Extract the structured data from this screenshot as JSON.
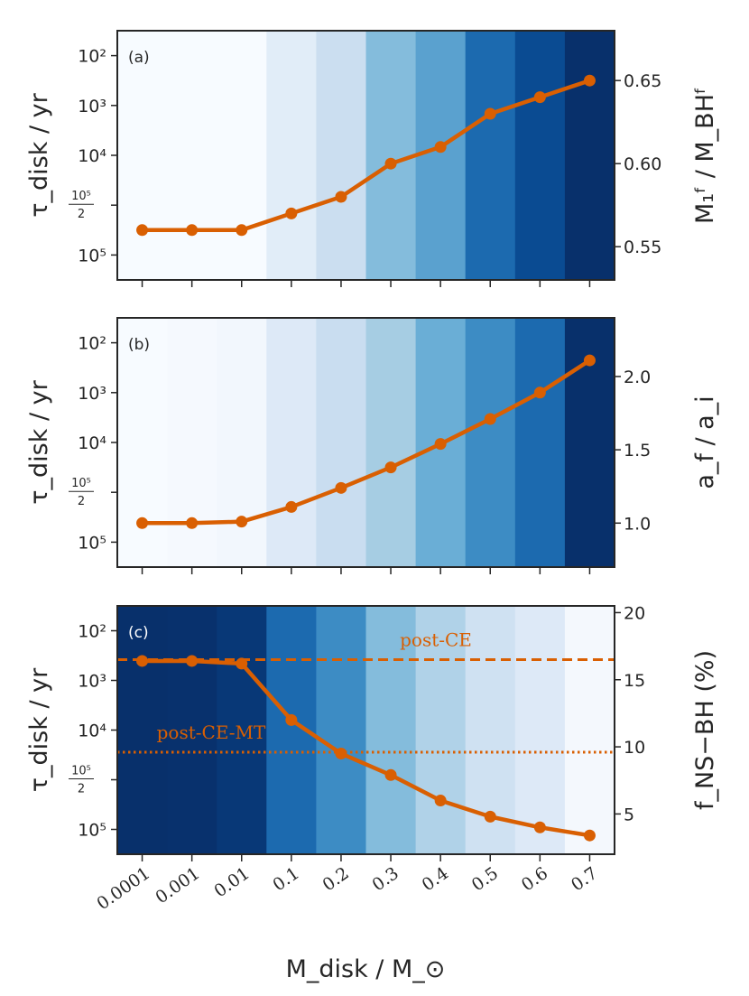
{
  "chart_data": {
    "type": "line",
    "shared_x": {
      "categories": [
        "0.0001",
        "0.001",
        "0.01",
        "0.1",
        "0.2",
        "0.3",
        "0.4",
        "0.5",
        "0.6",
        "0.7"
      ],
      "label": "M_disk / M_⊙"
    },
    "left_axis": {
      "label": "τ_disk / yr",
      "tick_labels": [
        "10²",
        "10³",
        "10⁴",
        "10⁵/2",
        "10⁵"
      ]
    },
    "panels": [
      {
        "tag": "(a)",
        "right_label": "M₁ᶠ / M_BHᶠ",
        "right_ylim": [
          0.53,
          0.68
        ],
        "right_ticks": [
          0.55,
          0.6,
          0.65
        ],
        "right_tick_labels": [
          "0.55",
          "0.60",
          "0.65"
        ],
        "band_colors": [
          "#f7fbff",
          "#f7fbff",
          "#f7fbff",
          "#e1edf8",
          "#cbdef0",
          "#84bcdc",
          "#5aa1cf",
          "#1c6aaf",
          "#0a4b92",
          "#08306b"
        ],
        "series": [
          {
            "name": "M1f/MBHf",
            "values": [
              0.56,
              0.56,
              0.56,
              0.57,
              0.58,
              0.6,
              0.61,
              0.63,
              0.64,
              0.65
            ]
          }
        ],
        "reference_lines": []
      },
      {
        "tag": "(b)",
        "right_label": "a_f / a_i",
        "right_ylim": [
          0.7,
          2.4
        ],
        "right_ticks": [
          1.0,
          1.5,
          2.0
        ],
        "right_tick_labels": [
          "1.0",
          "1.5",
          "2.0"
        ],
        "band_colors": [
          "#f7fbff",
          "#f5f9fe",
          "#f2f7fd",
          "#dde9f7",
          "#c9ddf0",
          "#a6cde3",
          "#6aaed6",
          "#3d8cc4",
          "#1c6aaf",
          "#08306b"
        ],
        "series": [
          {
            "name": "af/ai",
            "values": [
              1.0,
              1.0,
              1.01,
              1.11,
              1.24,
              1.38,
              1.54,
              1.71,
              1.89,
              2.11
            ]
          }
        ],
        "reference_lines": []
      },
      {
        "tag": "(c)",
        "right_label": "f_NS−BH (%)",
        "right_ylim": [
          2,
          20.5
        ],
        "right_ticks": [
          5,
          10,
          15,
          20
        ],
        "right_tick_labels": [
          "5",
          "10",
          "15",
          "20"
        ],
        "band_colors": [
          "#08306b",
          "#08316d",
          "#083877",
          "#1c6aaf",
          "#3d8cc4",
          "#84bcdc",
          "#b0d2e8",
          "#cfe1f2",
          "#dde9f7",
          "#f4f8fd"
        ],
        "series": [
          {
            "name": "fNS-BH",
            "values": [
              16.4,
              16.4,
              16.2,
              12.0,
              9.5,
              7.9,
              6.0,
              4.8,
              4.0,
              3.4
            ]
          }
        ],
        "reference_lines": [
          {
            "label": "post-CE",
            "value": 16.5,
            "style": "dashed"
          },
          {
            "label": "post-CE-MT",
            "value": 9.6,
            "style": "dotted"
          }
        ]
      }
    ],
    "line_color": "#d95f02"
  }
}
